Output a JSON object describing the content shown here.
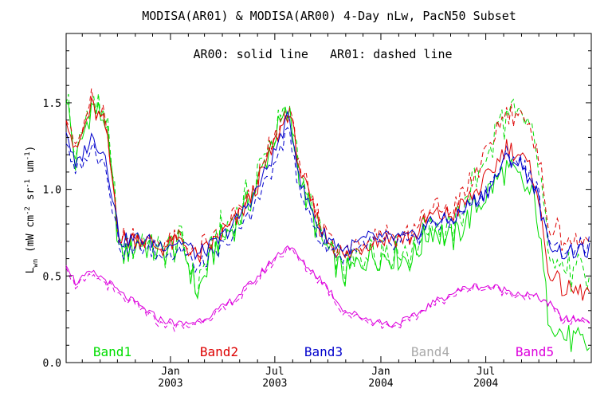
{
  "chart_data": {
    "type": "line",
    "title": "MODISA(AR01) & MODISA(AR00) 4-Day nLw, PacN50 Subset",
    "annotation": "AR00: solid line   AR01: dashed line",
    "ylabel": "L_wn (mW cm^-2 sr^-1 um^-1)",
    "ylabel_main": "L",
    "ylabel_sub": "wn",
    "ylabel_units": " (mW cm",
    "ylabel_exp1": "-2",
    "ylabel_mid": " sr",
    "ylabel_exp2": "-1",
    "ylabel_mid2": " um",
    "ylabel_exp3": "-1",
    "ylabel_close": ")",
    "ylim": [
      0.0,
      1.9
    ],
    "xlim": [
      "2002-07-04",
      "2004-12-31"
    ],
    "x_tick_labels": [
      {
        "month": "Jan",
        "year": "2003",
        "date": "2003-01-01"
      },
      {
        "month": "Jul",
        "year": "2003",
        "date": "2003-07-01"
      },
      {
        "month": "Jan",
        "year": "2004",
        "date": "2004-01-01"
      },
      {
        "month": "Jul",
        "year": "2004",
        "date": "2004-07-01"
      }
    ],
    "y_tick_labels": [
      "0.0",
      "0.5",
      "1.0",
      "1.5"
    ],
    "y_tick_values": [
      0.0,
      0.5,
      1.0,
      1.5
    ],
    "legend": [
      {
        "label": "Band1",
        "color": "#00dd00"
      },
      {
        "label": "Band2",
        "color": "#dd0000"
      },
      {
        "label": "Band3",
        "color": "#0000cc"
      },
      {
        "label": "Band4",
        "color": "#aaaaaa"
      },
      {
        "label": "Band5",
        "color": "#dd00dd"
      }
    ],
    "line_styles": {
      "AR00": "solid",
      "AR01": "dashed"
    },
    "band_keyframes": {
      "Band1": [
        [
          "2002-07-04",
          1.55
        ],
        [
          "2002-07-20",
          1.15
        ],
        [
          "2002-08-17",
          1.48
        ],
        [
          "2002-09-10",
          1.4
        ],
        [
          "2002-10-06",
          0.6
        ],
        [
          "2002-11-07",
          0.7
        ],
        [
          "2002-12-13",
          0.63
        ],
        [
          "2003-01-22",
          0.68
        ],
        [
          "2003-02-17",
          0.4
        ],
        [
          "2003-03-25",
          0.7
        ],
        [
          "2003-04-26",
          0.8
        ],
        [
          "2003-05-28",
          1.0
        ],
        [
          "2003-06-29",
          1.3
        ],
        [
          "2003-07-25",
          1.45
        ],
        [
          "2003-08-18",
          1.0
        ],
        [
          "2003-09-20",
          0.7
        ],
        [
          "2003-10-30",
          0.5
        ],
        [
          "2003-12-11",
          0.62
        ],
        [
          "2004-01-20",
          0.62
        ],
        [
          "2004-02-25",
          0.6
        ],
        [
          "2004-03-28",
          0.78
        ],
        [
          "2004-05-03",
          0.7
        ],
        [
          "2004-06-04",
          0.85
        ],
        [
          "2004-07-08",
          1.0
        ],
        [
          "2004-08-05",
          1.12
        ],
        [
          "2004-08-29",
          1.05
        ],
        [
          "2004-09-26",
          0.92
        ],
        [
          "2004-10-16",
          0.3
        ],
        [
          "2004-11-13",
          0.15
        ],
        [
          "2004-12-31",
          0.08
        ]
      ],
      "Band2": [
        [
          "2002-07-04",
          1.45
        ],
        [
          "2002-07-20",
          1.2
        ],
        [
          "2002-08-17",
          1.48
        ],
        [
          "2002-09-10",
          1.36
        ],
        [
          "2002-10-06",
          0.7
        ],
        [
          "2002-11-07",
          0.72
        ],
        [
          "2002-12-13",
          0.66
        ],
        [
          "2003-01-22",
          0.7
        ],
        [
          "2003-02-17",
          0.6
        ],
        [
          "2003-03-25",
          0.72
        ],
        [
          "2003-04-26",
          0.82
        ],
        [
          "2003-05-28",
          1.0
        ],
        [
          "2003-06-29",
          1.25
        ],
        [
          "2003-07-25",
          1.46
        ],
        [
          "2003-08-18",
          1.05
        ],
        [
          "2003-09-20",
          0.76
        ],
        [
          "2003-10-30",
          0.6
        ],
        [
          "2003-12-11",
          0.7
        ],
        [
          "2004-01-20",
          0.72
        ],
        [
          "2004-02-25",
          0.72
        ],
        [
          "2004-03-28",
          0.85
        ],
        [
          "2004-05-03",
          0.85
        ],
        [
          "2004-06-04",
          0.95
        ],
        [
          "2004-07-08",
          1.08
        ],
        [
          "2004-08-05",
          1.25
        ],
        [
          "2004-08-29",
          1.2
        ],
        [
          "2004-09-26",
          1.05
        ],
        [
          "2004-10-16",
          0.55
        ],
        [
          "2004-11-13",
          0.42
        ],
        [
          "2004-12-31",
          0.4
        ]
      ],
      "Band3": [
        [
          "2002-07-04",
          1.35
        ],
        [
          "2002-07-20",
          1.12
        ],
        [
          "2002-08-17",
          1.3
        ],
        [
          "2002-09-10",
          1.2
        ],
        [
          "2002-10-06",
          0.7
        ],
        [
          "2002-11-07",
          0.72
        ],
        [
          "2002-12-13",
          0.68
        ],
        [
          "2003-01-22",
          0.7
        ],
        [
          "2003-02-17",
          0.62
        ],
        [
          "2003-03-25",
          0.7
        ],
        [
          "2003-04-26",
          0.82
        ],
        [
          "2003-05-28",
          0.98
        ],
        [
          "2003-06-29",
          1.2
        ],
        [
          "2003-07-25",
          1.42
        ],
        [
          "2003-08-18",
          1.0
        ],
        [
          "2003-09-20",
          0.75
        ],
        [
          "2003-10-30",
          0.65
        ],
        [
          "2003-12-11",
          0.72
        ],
        [
          "2004-01-20",
          0.72
        ],
        [
          "2004-02-25",
          0.72
        ],
        [
          "2004-03-28",
          0.82
        ],
        [
          "2004-05-03",
          0.82
        ],
        [
          "2004-06-04",
          0.92
        ],
        [
          "2004-07-08",
          1.0
        ],
        [
          "2004-08-05",
          1.18
        ],
        [
          "2004-08-29",
          1.15
        ],
        [
          "2004-09-26",
          1.0
        ],
        [
          "2004-10-16",
          0.7
        ],
        [
          "2004-11-13",
          0.63
        ],
        [
          "2004-12-31",
          0.65
        ]
      ],
      "Band5": [
        [
          "2002-07-04",
          0.58
        ],
        [
          "2002-07-20",
          0.46
        ],
        [
          "2002-08-17",
          0.52
        ],
        [
          "2002-09-10",
          0.48
        ],
        [
          "2002-10-06",
          0.4
        ],
        [
          "2002-11-07",
          0.33
        ],
        [
          "2002-12-13",
          0.25
        ],
        [
          "2003-01-22",
          0.22
        ],
        [
          "2003-02-17",
          0.24
        ],
        [
          "2003-03-25",
          0.3
        ],
        [
          "2003-04-26",
          0.38
        ],
        [
          "2003-05-28",
          0.48
        ],
        [
          "2003-06-29",
          0.6
        ],
        [
          "2003-07-25",
          0.68
        ],
        [
          "2003-08-18",
          0.58
        ],
        [
          "2003-09-20",
          0.48
        ],
        [
          "2003-10-30",
          0.3
        ],
        [
          "2003-12-11",
          0.25
        ],
        [
          "2004-01-20",
          0.22
        ],
        [
          "2004-02-25",
          0.26
        ],
        [
          "2004-03-28",
          0.34
        ],
        [
          "2004-05-03",
          0.4
        ],
        [
          "2004-06-04",
          0.44
        ],
        [
          "2004-07-08",
          0.44
        ],
        [
          "2004-08-05",
          0.42
        ],
        [
          "2004-08-29",
          0.4
        ],
        [
          "2004-09-26",
          0.38
        ],
        [
          "2004-10-16",
          0.35
        ],
        [
          "2004-11-13",
          0.25
        ],
        [
          "2004-12-31",
          0.25
        ]
      ]
    },
    "ar01_offsets": {
      "Band1": [
        [
          "2002-07-04",
          0.02
        ],
        [
          "2004-05-03",
          0.04
        ],
        [
          "2004-08-05",
          0.32
        ],
        [
          "2004-10-16",
          0.38
        ],
        [
          "2004-12-31",
          0.4
        ]
      ],
      "Band2": [
        [
          "2002-07-04",
          0.02
        ],
        [
          "2004-05-03",
          0.03
        ],
        [
          "2004-08-05",
          0.22
        ],
        [
          "2004-10-16",
          0.26
        ],
        [
          "2004-12-31",
          0.3
        ]
      ],
      "Band3": [
        [
          "2002-07-04",
          -0.05
        ],
        [
          "2003-07-25",
          -0.07
        ],
        [
          "2004-05-03",
          -0.01
        ],
        [
          "2004-08-05",
          0.02
        ],
        [
          "2004-12-31",
          0.03
        ]
      ],
      "Band5": [
        [
          "2002-07-04",
          -0.02
        ],
        [
          "2004-12-31",
          -0.01
        ]
      ]
    }
  }
}
